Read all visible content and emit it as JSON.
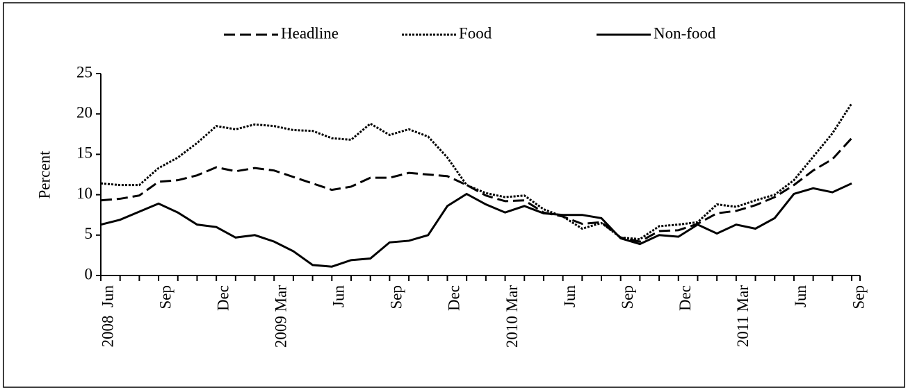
{
  "chart_data": {
    "type": "line",
    "y_label": "Percent",
    "categories": [
      "2008  Jun",
      null,
      null,
      "Sep",
      null,
      null,
      "Dec",
      null,
      null,
      "2009 Mar",
      null,
      null,
      "Jun",
      null,
      null,
      "Sep",
      null,
      null,
      "Dec",
      null,
      null,
      "2010 Mar",
      null,
      null,
      "Jun",
      null,
      null,
      "Sep",
      null,
      null,
      "Dec",
      null,
      null,
      "2011 Mar",
      null,
      null,
      "Jun",
      null,
      null,
      "Sep"
    ],
    "series": [
      {
        "name": "Headline",
        "color": "#000000",
        "dash": "dashed",
        "values": [
          9.3,
          9.5,
          9.9,
          11.6,
          11.8,
          12.4,
          13.4,
          12.9,
          13.3,
          13.0,
          12.2,
          11.4,
          10.6,
          11.0,
          12.1,
          12.1,
          12.7,
          12.5,
          12.3,
          11.2,
          9.9,
          9.2,
          9.3,
          7.8,
          7.3,
          6.4,
          6.6,
          4.7,
          4.2,
          5.5,
          5.6,
          6.4,
          7.7,
          8.0,
          8.7,
          9.7,
          11.2,
          13.0,
          14.4,
          17.0
        ]
      },
      {
        "name": "Food",
        "color": "#000000",
        "dash": "dotted",
        "values": [
          11.4,
          11.2,
          11.2,
          13.3,
          14.6,
          16.4,
          18.5,
          18.1,
          18.7,
          18.5,
          18.0,
          17.9,
          17.0,
          16.8,
          18.8,
          17.4,
          18.1,
          17.2,
          14.6,
          11.2,
          10.2,
          9.7,
          9.9,
          8.2,
          7.3,
          5.8,
          6.5,
          4.7,
          4.5,
          6.1,
          6.3,
          6.6,
          8.8,
          8.5,
          9.3,
          10.0,
          11.8,
          14.7,
          17.6,
          21.3
        ]
      },
      {
        "name": "Non-food",
        "color": "#000000",
        "dash": "solid",
        "values": [
          6.3,
          6.9,
          7.9,
          8.9,
          7.8,
          6.3,
          6.0,
          4.7,
          5.0,
          4.2,
          3.0,
          1.3,
          1.1,
          1.9,
          2.1,
          4.1,
          4.3,
          5.0,
          8.6,
          10.1,
          8.8,
          7.8,
          8.6,
          7.7,
          7.5,
          7.5,
          7.1,
          4.6,
          3.9,
          5.0,
          4.8,
          6.3,
          5.2,
          6.3,
          5.8,
          7.1,
          10.1,
          10.8,
          10.3,
          11.4
        ]
      }
    ],
    "ylim": [
      0,
      25
    ],
    "yticks": [
      0,
      5,
      10,
      15,
      20,
      25
    ],
    "legend": "top",
    "grid": false
  }
}
